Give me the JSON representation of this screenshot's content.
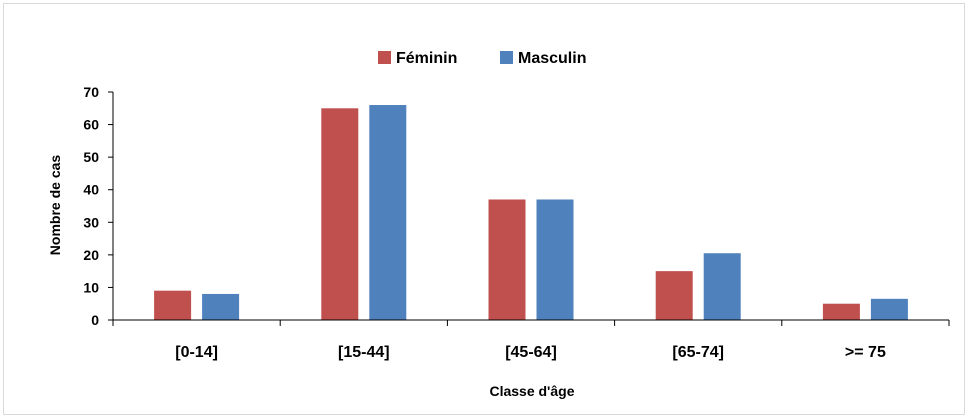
{
  "chart_data": {
    "type": "bar",
    "categories": [
      "[0-14]",
      "[15-44]",
      "[45-64]",
      "[65-74]",
      ">= 75"
    ],
    "series": [
      {
        "name": "Féminin",
        "values": [
          9,
          65,
          37,
          15,
          5
        ],
        "color": "#c0504d"
      },
      {
        "name": "Masculin",
        "values": [
          8,
          66,
          37,
          20.5,
          6.5
        ],
        "color": "#4f81bd"
      }
    ],
    "xlabel": "Classe d'âge",
    "ylabel": "Nombre de cas",
    "ylim": [
      0,
      70
    ],
    "yticks": [
      0,
      10,
      20,
      30,
      40,
      50,
      60,
      70
    ],
    "grid": false,
    "legend_position": "top"
  }
}
